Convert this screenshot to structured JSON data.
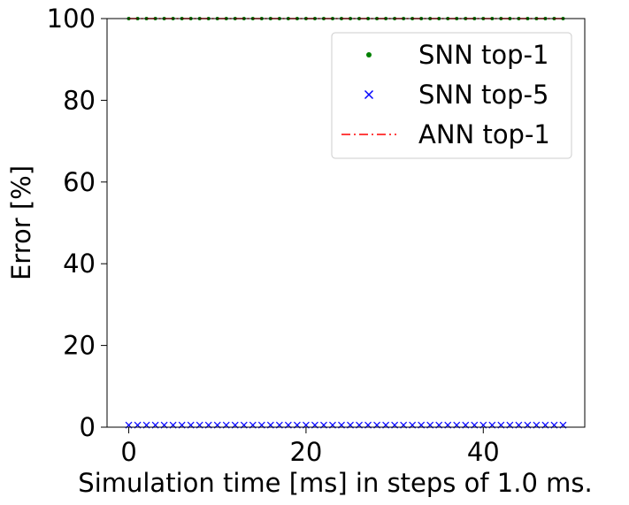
{
  "chart_data": {
    "type": "line",
    "title": "",
    "xlabel": "Simulation time [ms] in steps of 1.0 ms.",
    "ylabel": "Error [%]",
    "xlim": [
      -2.45,
      51.45
    ],
    "ylim": [
      0,
      100
    ],
    "xticks": [
      0,
      20,
      40
    ],
    "yticks": [
      0,
      20,
      40,
      60,
      80,
      100
    ],
    "grid": false,
    "legend_position": "top-right",
    "x": [
      0,
      1,
      2,
      3,
      4,
      5,
      6,
      7,
      8,
      9,
      10,
      11,
      12,
      13,
      14,
      15,
      16,
      17,
      18,
      19,
      20,
      21,
      22,
      23,
      24,
      25,
      26,
      27,
      28,
      29,
      30,
      31,
      32,
      33,
      34,
      35,
      36,
      37,
      38,
      39,
      40,
      41,
      42,
      43,
      44,
      45,
      46,
      47,
      48,
      49
    ],
    "series": [
      {
        "name": "SNN top-1",
        "marker": "dot",
        "color": "#008000",
        "constant_value": 100
      },
      {
        "name": "SNN top-5",
        "marker": "x",
        "color": "#0000ff",
        "constant_value": 0.5
      },
      {
        "name": "ANN top-1",
        "marker": "dash-dot-line",
        "color": "#ff0000",
        "constant_value": 100
      }
    ]
  }
}
